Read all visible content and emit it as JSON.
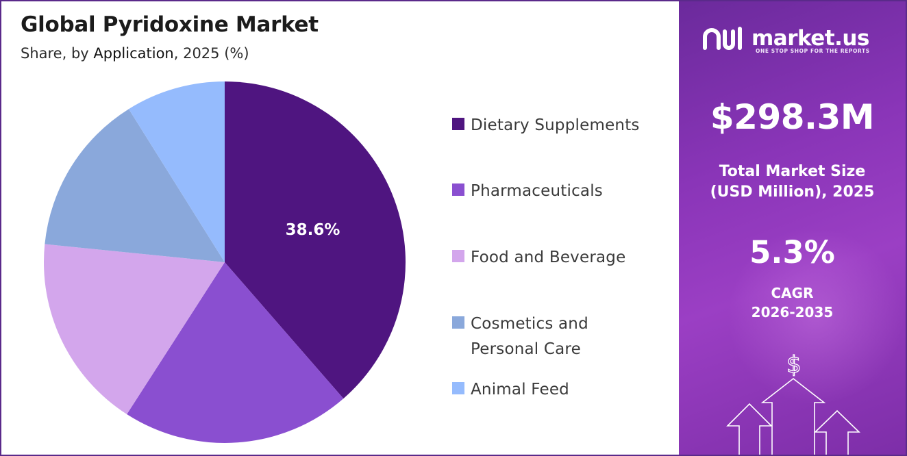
{
  "header": {
    "title": "Global Pyridoxine Market",
    "subtitle_pre": "Share, by ",
    "subtitle_app": "Application",
    "subtitle_post": ", 2025 (%)"
  },
  "chart_data": {
    "type": "pie",
    "title": "Global Pyridoxine Market",
    "subtitle": "Share, by Application, 2025 (%)",
    "start_angle_deg": 0,
    "direction": "clockwise",
    "slices": [
      {
        "label": "Dietary Supplements",
        "value": 38.6,
        "color": "#4f1580",
        "data_label": "38.6%"
      },
      {
        "label": "Pharmaceuticals",
        "value": 20.5,
        "color": "#8a4fd0",
        "data_label": ""
      },
      {
        "label": "Food and Beverage",
        "value": 17.5,
        "color": "#d3a6ec",
        "data_label": ""
      },
      {
        "label": "Cosmetics and Personal Care",
        "value": 14.5,
        "color": "#8aa8db",
        "data_label": ""
      },
      {
        "label": "Animal Feed",
        "value": 8.9,
        "color": "#95bbfd",
        "data_label": ""
      }
    ],
    "legend": {
      "position": "right",
      "entries": [
        {
          "lines": [
            "Dietary Supplements"
          ],
          "color": "#4f1580"
        },
        {
          "lines": [
            "Pharmaceuticals"
          ],
          "color": "#8a4fd0"
        },
        {
          "lines": [
            "Food and Beverage"
          ],
          "color": "#d3a6ec"
        },
        {
          "lines": [
            "Cosmetics and",
            "Personal Care"
          ],
          "color": "#8aa8db"
        },
        {
          "lines": [
            "Animal Feed"
          ],
          "color": "#95bbfd"
        }
      ]
    }
  },
  "sidebar": {
    "brand": "market.us",
    "tagline": "ONE STOP SHOP FOR THE REPORTS",
    "market_size": "$298.3M",
    "market_size_label_1": "Total Market Size",
    "market_size_label_2": "(USD Million), 2025",
    "cagr_value": "5.3%",
    "cagr_label": "CAGR",
    "cagr_period": "2026-2035",
    "dollar_symbol": "$",
    "colors": {
      "panel": "#8a35b8",
      "text": "#ffffff"
    }
  }
}
